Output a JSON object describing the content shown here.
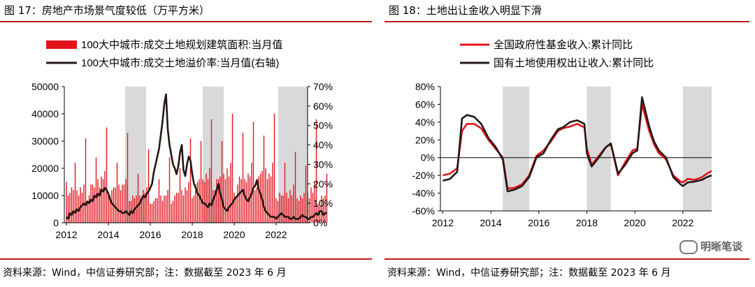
{
  "left_panel": {
    "title": "图 17：房地产市场景气度较低（万平方米）",
    "source": "资料来源：Wind，中信证券研究部；注：数据截至 2023 年 6 月"
  },
  "right_panel": {
    "title": "图 18：土地出让金收入明显下滑",
    "source": "资料来源：Wind，中信证券研究部；注：数据截至 2023 年 6 月"
  },
  "watermark": "明晰笔谈",
  "colors": {
    "red": "#e3131b",
    "dark": "#231815",
    "shade": "#d9d9d9",
    "accent": "#c2161d"
  },
  "chart_data": [
    {
      "type": "bar",
      "title": "",
      "legend": [
        {
          "name": "100大中城市:成交土地规划建筑面积:当月值",
          "kind": "bar",
          "color": "#e3131b"
        },
        {
          "name": "100大中城市:成交土地溢价率:当月值(右轴)",
          "kind": "line",
          "color": "#231815"
        }
      ],
      "legend_position": "top",
      "x_ticks": [
        "2012",
        "2014",
        "2016",
        "2018",
        "2020",
        "2022"
      ],
      "x_range": [
        2011.9,
        2023.5
      ],
      "y_left_ticks": [
        "0",
        "10000",
        "20000",
        "30000",
        "40000",
        "50000"
      ],
      "y_left_range": [
        0,
        50000
      ],
      "y_right_ticks": [
        "0%",
        "10%",
        "20%",
        "30%",
        "40%",
        "50%",
        "60%",
        "70%"
      ],
      "y_right_range": [
        0,
        70
      ],
      "shaded_periods": [
        [
          2014.8,
          2015.8
        ],
        [
          2018.5,
          2019.5
        ],
        [
          2022.1,
          2023.5
        ]
      ],
      "bar_series": {
        "name": "100大中城市:成交土地规划建筑面积:当月值",
        "start": 2012.0,
        "step_months": 1,
        "values": [
          15000,
          10000,
          11000,
          13000,
          12000,
          22000,
          12000,
          10000,
          13000,
          11000,
          14000,
          31000,
          8000,
          10000,
          14000,
          14000,
          13000,
          24000,
          16000,
          13000,
          17000,
          16000,
          19000,
          35000,
          11000,
          10000,
          12000,
          13000,
          13000,
          22000,
          14000,
          12000,
          14000,
          14000,
          16000,
          33000,
          8000,
          8000,
          10000,
          9000,
          10000,
          18000,
          10000,
          9000,
          12000,
          11000,
          13000,
          27000,
          7000,
          7000,
          8000,
          9000,
          9000,
          16000,
          10000,
          8000,
          10000,
          10000,
          12000,
          24000,
          7000,
          8000,
          10000,
          11000,
          11000,
          20000,
          12000,
          10000,
          13000,
          12000,
          15000,
          31000,
          9000,
          10000,
          14000,
          15000,
          16000,
          30000,
          16000,
          15000,
          18000,
          16000,
          20000,
          38000,
          12000,
          12000,
          16000,
          16000,
          17000,
          30000,
          18000,
          16000,
          20000,
          17000,
          22000,
          40000,
          11000,
          9000,
          14000,
          17000,
          16000,
          33000,
          16000,
          15000,
          18000,
          17000,
          22000,
          37000,
          12000,
          13000,
          17000,
          18000,
          19000,
          32000,
          20000,
          16000,
          18000,
          17000,
          22000,
          40000,
          9000,
          8000,
          11000,
          10000,
          10000,
          22000,
          11000,
          9000,
          12000,
          10000,
          14000,
          26000,
          9000,
          8000,
          10000,
          9000,
          11000,
          21000,
          11000,
          9000,
          13000,
          11000,
          15000,
          38000,
          7000,
          6000,
          10000,
          9000,
          10000,
          18000
        ]
      },
      "line_series": {
        "name": "100大中城市:成交土地溢价率:当月值(右轴)",
        "start": 2012.0,
        "step_months": 1,
        "values": [
          3,
          2,
          5,
          4,
          6,
          5,
          7,
          6,
          8,
          9,
          10,
          9,
          11,
          10,
          12,
          11,
          14,
          13,
          15,
          14,
          17,
          16,
          18,
          17,
          15,
          12,
          10,
          9,
          8,
          7,
          6,
          6,
          5,
          5,
          6,
          5,
          4,
          6,
          5,
          7,
          8,
          9,
          10,
          12,
          14,
          13,
          15,
          16,
          18,
          20,
          26,
          30,
          34,
          38,
          45,
          52,
          61,
          66,
          48,
          40,
          35,
          30,
          28,
          25,
          29,
          36,
          40,
          27,
          24,
          30,
          34,
          32,
          25,
          20,
          18,
          15,
          14,
          12,
          10,
          10,
          9,
          8,
          10,
          9,
          12,
          14,
          17,
          20,
          15,
          12,
          8,
          7,
          6,
          8,
          9,
          10,
          12,
          13,
          14,
          15,
          16,
          17,
          14,
          12,
          11,
          13,
          15,
          18,
          19,
          22,
          17,
          15,
          12,
          8,
          6,
          5,
          4,
          3,
          3,
          3,
          2,
          3,
          4,
          5,
          4,
          3,
          3,
          3,
          2,
          2,
          3,
          2,
          2,
          2,
          3,
          4,
          3,
          3,
          2,
          2,
          3,
          3,
          4,
          5,
          4,
          6,
          6,
          4,
          5,
          5
        ]
      }
    },
    {
      "type": "line",
      "title": "",
      "legend": [
        {
          "name": "全国政府性基金收入:累计同比",
          "color": "#e3131b"
        },
        {
          "name": "国有土地使用权出让收入:累计同比",
          "color": "#231815"
        }
      ],
      "legend_position": "top",
      "x_ticks": [
        "2012",
        "2014",
        "2016",
        "2018",
        "2020",
        "2022"
      ],
      "x_range": [
        2011.9,
        2023.2
      ],
      "y_ticks": [
        "-60%",
        "-40%",
        "-20%",
        "0%",
        "20%",
        "40%",
        "60%",
        "80%"
      ],
      "y_range": [
        -60,
        80
      ],
      "shaded_periods": [
        [
          2014.5,
          2015.6
        ],
        [
          2018.0,
          2019.0
        ],
        [
          2022.0,
          2023.2
        ]
      ],
      "series": [
        {
          "name": "全国政府性基金收入:累计同比",
          "x": [
            2012.0,
            2012.3,
            2012.6,
            2012.8,
            2013.0,
            2013.3,
            2013.6,
            2013.9,
            2014.2,
            2014.5,
            2014.7,
            2015.0,
            2015.3,
            2015.6,
            2015.9,
            2016.2,
            2016.5,
            2016.8,
            2017.0,
            2017.3,
            2017.6,
            2017.9,
            2018.0,
            2018.2,
            2018.5,
            2018.8,
            2019.0,
            2019.3,
            2019.6,
            2019.9,
            2020.1,
            2020.3,
            2020.6,
            2020.8,
            2021.0,
            2021.3,
            2021.6,
            2021.9,
            2022.0,
            2022.2,
            2022.5,
            2022.8,
            2023.0,
            2023.2
          ],
          "y": [
            -20,
            -18,
            -12,
            30,
            38,
            38,
            33,
            20,
            10,
            0,
            -35,
            -34,
            -30,
            -20,
            2,
            8,
            18,
            30,
            33,
            35,
            38,
            34,
            10,
            -8,
            2,
            12,
            15,
            -20,
            -5,
            8,
            10,
            60,
            30,
            15,
            5,
            -2,
            -20,
            -27,
            -28,
            -24,
            -25,
            -22,
            -18,
            -15
          ]
        },
        {
          "name": "国有土地使用权出让收入:累计同比",
          "x": [
            2012.0,
            2012.3,
            2012.6,
            2012.8,
            2013.0,
            2013.3,
            2013.6,
            2013.9,
            2014.2,
            2014.5,
            2014.7,
            2015.0,
            2015.3,
            2015.6,
            2015.9,
            2016.2,
            2016.5,
            2016.8,
            2017.0,
            2017.3,
            2017.6,
            2017.9,
            2018.0,
            2018.2,
            2018.5,
            2018.8,
            2019.0,
            2019.3,
            2019.6,
            2019.9,
            2020.1,
            2020.3,
            2020.6,
            2020.8,
            2021.0,
            2021.3,
            2021.6,
            2021.9,
            2022.0,
            2022.2,
            2022.5,
            2022.8,
            2023.0,
            2023.2
          ],
          "y": [
            -26,
            -24,
            -16,
            44,
            48,
            46,
            38,
            22,
            12,
            -2,
            -38,
            -36,
            -32,
            -22,
            0,
            5,
            20,
            32,
            34,
            40,
            42,
            38,
            5,
            -10,
            0,
            12,
            16,
            -18,
            -8,
            5,
            8,
            68,
            35,
            18,
            8,
            0,
            -22,
            -30,
            -32,
            -28,
            -27,
            -25,
            -22,
            -20
          ]
        }
      ]
    }
  ]
}
